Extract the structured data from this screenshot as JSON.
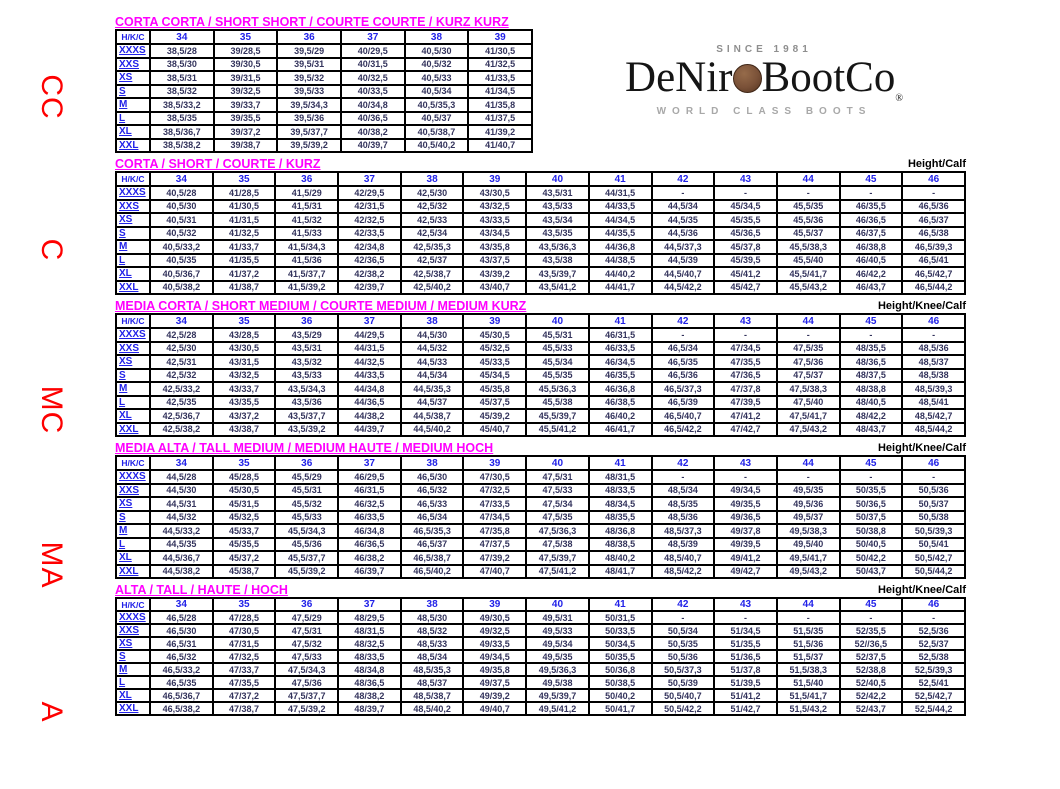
{
  "logo": {
    "since": "SINCE 1981",
    "name_left": "DeNir",
    "name_right": "BootCo",
    "registered": "®",
    "tagline": "WORLD CLASS BOOTS",
    "coin_color": "#7a5138"
  },
  "colors": {
    "title_magenta": "#ff00ff",
    "header_blue": "#2121e8",
    "data_navy": "#33335c",
    "side_label_red": "#fe0000"
  },
  "tables": [
    {
      "side_label": "CC",
      "title": "CORTA CORTA / SHORT SHORT / COURTE COURTE / KURZ KURZ",
      "height_label": "",
      "corner": "H/K/C",
      "columns": [
        "34",
        "35",
        "36",
        "37",
        "38",
        "39"
      ],
      "rows": [
        {
          "label": "XXXS",
          "values": [
            "38,5/28",
            "39/28,5",
            "39,5/29",
            "40/29,5",
            "40,5/30",
            "41/30,5"
          ]
        },
        {
          "label": "XXS",
          "values": [
            "38,5/30",
            "39/30,5",
            "39,5/31",
            "40/31,5",
            "40,5/32",
            "41/32,5"
          ]
        },
        {
          "label": "XS",
          "values": [
            "38,5/31",
            "39/31,5",
            "39,5/32",
            "40/32,5",
            "40,5/33",
            "41/33,5"
          ]
        },
        {
          "label": "S",
          "values": [
            "38,5/32",
            "39/32,5",
            "39,5/33",
            "40/33,5",
            "40,5/34",
            "41/34,5"
          ]
        },
        {
          "label": "M",
          "values": [
            "38,5/33,2",
            "39/33,7",
            "39,5/34,3",
            "40/34,8",
            "40,5/35,3",
            "41/35,8"
          ]
        },
        {
          "label": "L",
          "values": [
            "38,5/35",
            "39/35,5",
            "39,5/36",
            "40/36,5",
            "40,5/37",
            "41/37,5"
          ]
        },
        {
          "label": "XL",
          "values": [
            "38,5/36,7",
            "39/37,2",
            "39,5/37,7",
            "40/38,2",
            "40,5/38,7",
            "41/39,2"
          ]
        },
        {
          "label": "XXL",
          "values": [
            "38,5/38,2",
            "39/38,7",
            "39,5/39,2",
            "40/39,7",
            "40,5/40,2",
            "41/40,7"
          ]
        }
      ]
    },
    {
      "side_label": "C",
      "title": "CORTA / SHORT / COURTE / KURZ",
      "height_label": "Height/Calf",
      "corner": "H/K/C",
      "columns": [
        "34",
        "35",
        "36",
        "37",
        "38",
        "39",
        "40",
        "41",
        "42",
        "43",
        "44",
        "45",
        "46"
      ],
      "rows": [
        {
          "label": "XXXS",
          "values": [
            "40,5/28",
            "41/28,5",
            "41,5/29",
            "42/29,5",
            "42,5/30",
            "43/30,5",
            "43,5/31",
            "44/31,5",
            "-",
            "-",
            "-",
            "-",
            "-"
          ]
        },
        {
          "label": "XXS",
          "values": [
            "40,5/30",
            "41/30,5",
            "41,5/31",
            "42/31,5",
            "42,5/32",
            "43/32,5",
            "43,5/33",
            "44/33,5",
            "44,5/34",
            "45/34,5",
            "45,5/35",
            "46/35,5",
            "46,5/36"
          ]
        },
        {
          "label": "XS",
          "values": [
            "40,5/31",
            "41/31,5",
            "41,5/32",
            "42/32,5",
            "42,5/33",
            "43/33,5",
            "43,5/34",
            "44/34,5",
            "44,5/35",
            "45/35,5",
            "45,5/36",
            "46/36,5",
            "46,5/37"
          ]
        },
        {
          "label": "S",
          "values": [
            "40,5/32",
            "41/32,5",
            "41,5/33",
            "42/33,5",
            "42,5/34",
            "43/34,5",
            "43,5/35",
            "44/35,5",
            "44,5/36",
            "45/36,5",
            "45,5/37",
            "46/37,5",
            "46,5/38"
          ]
        },
        {
          "label": "M",
          "values": [
            "40,5/33,2",
            "41/33,7",
            "41,5/34,3",
            "42/34,8",
            "42,5/35,3",
            "43/35,8",
            "43,5/36,3",
            "44/36,8",
            "44,5/37,3",
            "45/37,8",
            "45,5/38,3",
            "46/38,8",
            "46,5/39,3"
          ]
        },
        {
          "label": "L",
          "values": [
            "40,5/35",
            "41/35,5",
            "41,5/36",
            "42/36,5",
            "42,5/37",
            "43/37,5",
            "43,5/38",
            "44/38,5",
            "44,5/39",
            "45/39,5",
            "45,5/40",
            "46/40,5",
            "46,5/41"
          ]
        },
        {
          "label": "XL",
          "values": [
            "40,5/36,7",
            "41/37,2",
            "41,5/37,7",
            "42/38,2",
            "42,5/38,7",
            "43/39,2",
            "43,5/39,7",
            "44/40,2",
            "44,5/40,7",
            "45/41,2",
            "45,5/41,7",
            "46/42,2",
            "46,5/42,7"
          ]
        },
        {
          "label": "XXL",
          "values": [
            "40,5/38,2",
            "41/38,7",
            "41,5/39,2",
            "42/39,7",
            "42,5/40,2",
            "43/40,7",
            "43,5/41,2",
            "44/41,7",
            "44,5/42,2",
            "45/42,7",
            "45,5/43,2",
            "46/43,7",
            "46,5/44,2"
          ]
        }
      ]
    },
    {
      "side_label": "MC",
      "title": "MEDIA CORTA / SHORT MEDIUM / COURTE MEDIUM / MEDIUM KURZ",
      "height_label": "Height/Knee/Calf",
      "corner": "H/K/C",
      "columns": [
        "34",
        "35",
        "36",
        "37",
        "38",
        "39",
        "40",
        "41",
        "42",
        "43",
        "44",
        "45",
        "46"
      ],
      "rows": [
        {
          "label": "XXXS",
          "values": [
            "42,5/28",
            "43/28,5",
            "43,5/29",
            "44/29,5",
            "44,5/30",
            "45/30,5",
            "45,5/31",
            "46/31,5",
            "-",
            "-",
            "-",
            "-",
            "-"
          ]
        },
        {
          "label": "XXS",
          "values": [
            "42,5/30",
            "43/30,5",
            "43,5/31",
            "44/31,5",
            "44,5/32",
            "45/32,5",
            "45,5/33",
            "46/33,5",
            "46,5/34",
            "47/34,5",
            "47,5/35",
            "48/35,5",
            "48,5/36"
          ]
        },
        {
          "label": "XS",
          "values": [
            "42,5/31",
            "43/31,5",
            "43,5/32",
            "44/32,5",
            "44,5/33",
            "45/33,5",
            "45,5/34",
            "46/34,5",
            "46,5/35",
            "47/35,5",
            "47,5/36",
            "48/36,5",
            "48,5/37"
          ]
        },
        {
          "label": "S",
          "values": [
            "42,5/32",
            "43/32,5",
            "43,5/33",
            "44/33,5",
            "44,5/34",
            "45/34,5",
            "45,5/35",
            "46/35,5",
            "46,5/36",
            "47/36,5",
            "47,5/37",
            "48/37,5",
            "48,5/38"
          ]
        },
        {
          "label": "M",
          "values": [
            "42,5/33,2",
            "43/33,7",
            "43,5/34,3",
            "44/34,8",
            "44,5/35,3",
            "45/35,8",
            "45,5/36,3",
            "46/36,8",
            "46,5/37,3",
            "47/37,8",
            "47,5/38,3",
            "48/38,8",
            "48,5/39,3"
          ]
        },
        {
          "label": "L",
          "values": [
            "42,5/35",
            "43/35,5",
            "43,5/36",
            "44/36,5",
            "44,5/37",
            "45/37,5",
            "45,5/38",
            "46/38,5",
            "46,5/39",
            "47/39,5",
            "47,5/40",
            "48/40,5",
            "48,5/41"
          ]
        },
        {
          "label": "XL",
          "values": [
            "42,5/36,7",
            "43/37,2",
            "43,5/37,7",
            "44/38,2",
            "44,5/38,7",
            "45/39,2",
            "45,5/39,7",
            "46/40,2",
            "46,5/40,7",
            "47/41,2",
            "47,5/41,7",
            "48/42,2",
            "48,5/42,7"
          ]
        },
        {
          "label": "XXL",
          "values": [
            "42,5/38,2",
            "43/38,7",
            "43,5/39,2",
            "44/39,7",
            "44,5/40,2",
            "45/40,7",
            "45,5/41,2",
            "46/41,7",
            "46,5/42,2",
            "47/42,7",
            "47,5/43,2",
            "48/43,7",
            "48,5/44,2"
          ]
        }
      ]
    },
    {
      "side_label": "MA",
      "title": "MEDIA ALTA / TALL MEDIUM / MEDIUM HAUTE / MEDIUM HOCH",
      "height_label": "Height/Knee/Calf",
      "corner": "H/K/C",
      "columns": [
        "34",
        "35",
        "36",
        "37",
        "38",
        "39",
        "40",
        "41",
        "42",
        "43",
        "44",
        "45",
        "46"
      ],
      "rows": [
        {
          "label": "XXXS",
          "values": [
            "44,5/28",
            "45/28,5",
            "45,5/29",
            "46/29,5",
            "46,5/30",
            "47/30,5",
            "47,5/31",
            "48/31,5",
            "-",
            "-",
            "-",
            "-",
            "-"
          ]
        },
        {
          "label": "XXS",
          "values": [
            "44,5/30",
            "45/30,5",
            "45,5/31",
            "46/31,5",
            "46,5/32",
            "47/32,5",
            "47,5/33",
            "48/33,5",
            "48,5/34",
            "49/34,5",
            "49,5/35",
            "50/35,5",
            "50,5/36"
          ]
        },
        {
          "label": "XS",
          "values": [
            "44,5/31",
            "45/31,5",
            "45,5/32",
            "46/32,5",
            "46,5/33",
            "47/33,5",
            "47,5/34",
            "48/34,5",
            "48,5/35",
            "49/35,5",
            "49,5/36",
            "50/36,5",
            "50,5/37"
          ]
        },
        {
          "label": "S",
          "values": [
            "44,5/32",
            "45/32,5",
            "45,5/33",
            "46/33,5",
            "46,5/34",
            "47/34,5",
            "47,5/35",
            "48/35,5",
            "48,5/36",
            "49/36,5",
            "49,5/37",
            "50/37,5",
            "50,5/38"
          ]
        },
        {
          "label": "M",
          "values": [
            "44,5/33,2",
            "45/33,7",
            "45,5/34,3",
            "46/34,8",
            "46,5/35,3",
            "47/35,8",
            "47,5/36,3",
            "48/36,8",
            "48,5/37,3",
            "49/37,8",
            "49,5/38,3",
            "50/38,8",
            "50,5/39,3"
          ]
        },
        {
          "label": "L",
          "values": [
            "44,5/35",
            "45/35,5",
            "45,5/36",
            "46/36,5",
            "46,5/37",
            "47/37,5",
            "47,5/38",
            "48/38,5",
            "48,5/39",
            "49/39,5",
            "49,5/40",
            "50/40,5",
            "50,5/41"
          ]
        },
        {
          "label": "XL",
          "values": [
            "44,5/36,7",
            "45/37,2",
            "45,5/37,7",
            "46/38,2",
            "46,5/38,7",
            "47/39,2",
            "47,5/39,7",
            "48/40,2",
            "48,5/40,7",
            "49/41,2",
            "49,5/41,7",
            "50/42,2",
            "50,5/42,7"
          ]
        },
        {
          "label": "XXL",
          "values": [
            "44,5/38,2",
            "45/38,7",
            "45,5/39,2",
            "46/39,7",
            "46,5/40,2",
            "47/40,7",
            "47,5/41,2",
            "48/41,7",
            "48,5/42,2",
            "49/42,7",
            "49,5/43,2",
            "50/43,7",
            "50,5/44,2"
          ]
        }
      ]
    },
    {
      "side_label": "A",
      "title": "ALTA / TALL / HAUTE / HOCH",
      "height_label": "Height/Knee/Calf",
      "corner": "H/K/C",
      "columns": [
        "34",
        "35",
        "36",
        "37",
        "38",
        "39",
        "40",
        "41",
        "42",
        "43",
        "44",
        "45",
        "46"
      ],
      "rows": [
        {
          "label": "XXXS",
          "values": [
            "46,5/28",
            "47/28,5",
            "47,5/29",
            "48/29,5",
            "48,5/30",
            "49/30,5",
            "49,5/31",
            "50/31,5",
            "-",
            "-",
            "-",
            "-",
            "-"
          ]
        },
        {
          "label": "XXS",
          "values": [
            "46,5/30",
            "47/30,5",
            "47,5/31",
            "48/31,5",
            "48,5/32",
            "49/32,5",
            "49,5/33",
            "50/33,5",
            "50,5/34",
            "51/34,5",
            "51,5/35",
            "52/35,5",
            "52,5/36"
          ]
        },
        {
          "label": "XS",
          "values": [
            "46,5/31",
            "47/31,5",
            "47,5/32",
            "48/32,5",
            "48,5/33",
            "49/33,5",
            "49,5/34",
            "50/34,5",
            "50,5/35",
            "51/35,5",
            "51,5/36",
            "52//36,5",
            "52,5/37"
          ]
        },
        {
          "label": "S",
          "values": [
            "46,5/32",
            "47/32,5",
            "47,5/33",
            "48/33,5",
            "48,5/34",
            "49/34,5",
            "49,5/35",
            "50/35,5",
            "50,5/36",
            "51/36,5",
            "51,5/37",
            "52/37,5",
            "52,5/38"
          ]
        },
        {
          "label": "M",
          "values": [
            "46,5/33,2",
            "47/33,7",
            "47,5/34,3",
            "48/34,8",
            "48,5/35,3",
            "49/35,8",
            "49,5/36,3",
            "50/36,8",
            "50,5/37,3",
            "51/37,8",
            "51,5/38,3",
            "52/38,8",
            "52,5/39,3"
          ]
        },
        {
          "label": "L",
          "values": [
            "46,5/35",
            "47/35,5",
            "47,5/36",
            "48/36,5",
            "48,5/37",
            "49/37,5",
            "49,5/38",
            "50/38,5",
            "50,5/39",
            "51/39,5",
            "51,5/40",
            "52/40,5",
            "52,5/41"
          ]
        },
        {
          "label": "XL",
          "values": [
            "46,5/36,7",
            "47/37,2",
            "47,5/37,7",
            "48/38,2",
            "48,5/38,7",
            "49/39,2",
            "49,5/39,7",
            "50/40,2",
            "50,5/40,7",
            "51/41,2",
            "51,5/41,7",
            "52/42,2",
            "52,5/42,7"
          ]
        },
        {
          "label": "XXL",
          "values": [
            "46,5/38,2",
            "47/38,7",
            "47,5/39,2",
            "48/39,7",
            "48,5/40,2",
            "49/40,7",
            "49,5/41,2",
            "50/41,7",
            "50,5/42,2",
            "51/42,7",
            "51,5/43,2",
            "52/43,7",
            "52,5/44,2"
          ]
        }
      ]
    }
  ]
}
